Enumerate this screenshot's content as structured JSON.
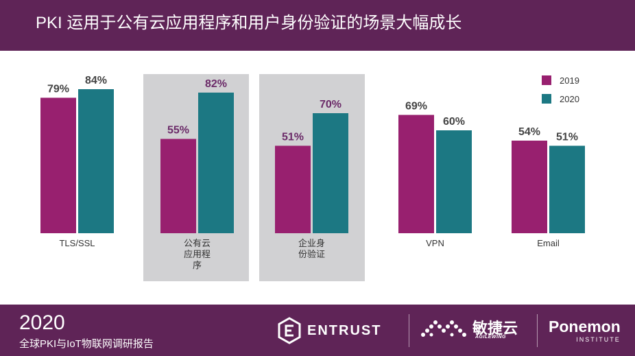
{
  "header": {
    "title": "PKI 运用于公有云应用程序和用户身份验证的场景大幅成长"
  },
  "footer": {
    "year": "2020",
    "report_title": "全球PKI与IoT物联网调研报告",
    "logos": {
      "entrust": "ENTRUST",
      "agilewing_cn": "敏捷云",
      "agilewing_en": "AGILEWING",
      "ponemon": "Ponemon",
      "ponemon_sub": "INSTITUTE"
    }
  },
  "colors": {
    "series_2019": "#98206f",
    "series_2020": "#1c7883",
    "highlight_bg": "#d1d1d3",
    "label_2019": "#6b2a68",
    "label_2020": "#6b2a68",
    "label_default": "#444444",
    "brand": "#5f2457"
  },
  "chart_data": {
    "type": "bar",
    "categories": [
      "TLS/SSL",
      "公有云\n应用程\n序",
      "企业身\n份验证",
      "VPN",
      "Email"
    ],
    "highlighted": [
      false,
      true,
      true,
      false,
      false
    ],
    "series": [
      {
        "name": "2019",
        "values": [
          79,
          55,
          51,
          69,
          54
        ]
      },
      {
        "name": "2020",
        "values": [
          84,
          82,
          70,
          60,
          51
        ]
      }
    ],
    "value_labels": {
      "2019": [
        "79%",
        "55%",
        "51%",
        "69%",
        "54%"
      ],
      "2020": [
        "84%",
        "82%",
        "70%",
        "60%",
        "51%"
      ]
    },
    "legend_position": "top-right",
    "grid": false,
    "ylim": [
      0,
      100
    ]
  }
}
